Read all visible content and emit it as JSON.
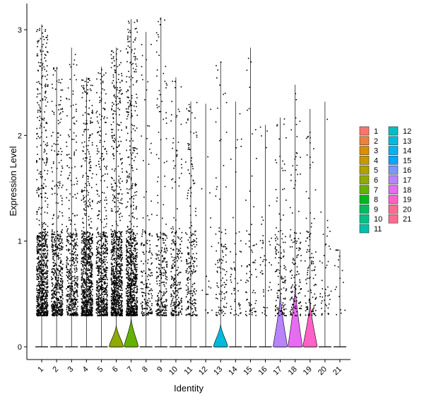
{
  "chart_data": {
    "type": "violin",
    "xlabel": "Identity",
    "ylabel": "Expression Level",
    "ylim": [
      0,
      3.05
    ],
    "y_ticks": [
      0,
      1,
      2,
      3
    ],
    "grid": false,
    "legend_position": "right",
    "categories": [
      "1",
      "2",
      "3",
      "4",
      "5",
      "6",
      "7",
      "8",
      "9",
      "10",
      "11",
      "12",
      "13",
      "14",
      "15",
      "16",
      "17",
      "18",
      "19",
      "20",
      "21"
    ],
    "colors": [
      "#F8766D",
      "#EC8239",
      "#DB8E00",
      "#C79800",
      "#AEA200",
      "#8FAA00",
      "#64B200",
      "#00B81B",
      "#00BD5C",
      "#00C085",
      "#00C1A7",
      "#00BFC4",
      "#00BADE",
      "#00B2F3",
      "#00A6FF",
      "#7C96FF",
      "#B983FF",
      "#E76BF3",
      "#FF61C6",
      "#FF6C92",
      "#FF6C92"
    ],
    "max_values": [
      3.05,
      2.65,
      2.83,
      2.55,
      2.65,
      2.83,
      3.1,
      2.98,
      3.12,
      2.55,
      2.32,
      2.3,
      2.7,
      2.32,
      2.83,
      2.1,
      2.17,
      2.48,
      2.25,
      2.32,
      0.92
    ],
    "expressing_density": [
      1.0,
      0.62,
      0.5,
      0.95,
      0.7,
      1.0,
      1.0,
      0.2,
      0.3,
      0.28,
      0.25,
      0.02,
      0.12,
      0.06,
      0.08,
      0.05,
      0.15,
      0.15,
      0.12,
      0.05,
      0.02
    ],
    "violin_bulge": [
      0,
      0,
      0,
      0,
      0,
      0.045,
      0.075,
      0,
      0,
      0,
      0,
      0,
      0.05,
      0,
      0,
      0,
      0.18,
      0.22,
      0.15,
      0,
      0
    ]
  }
}
